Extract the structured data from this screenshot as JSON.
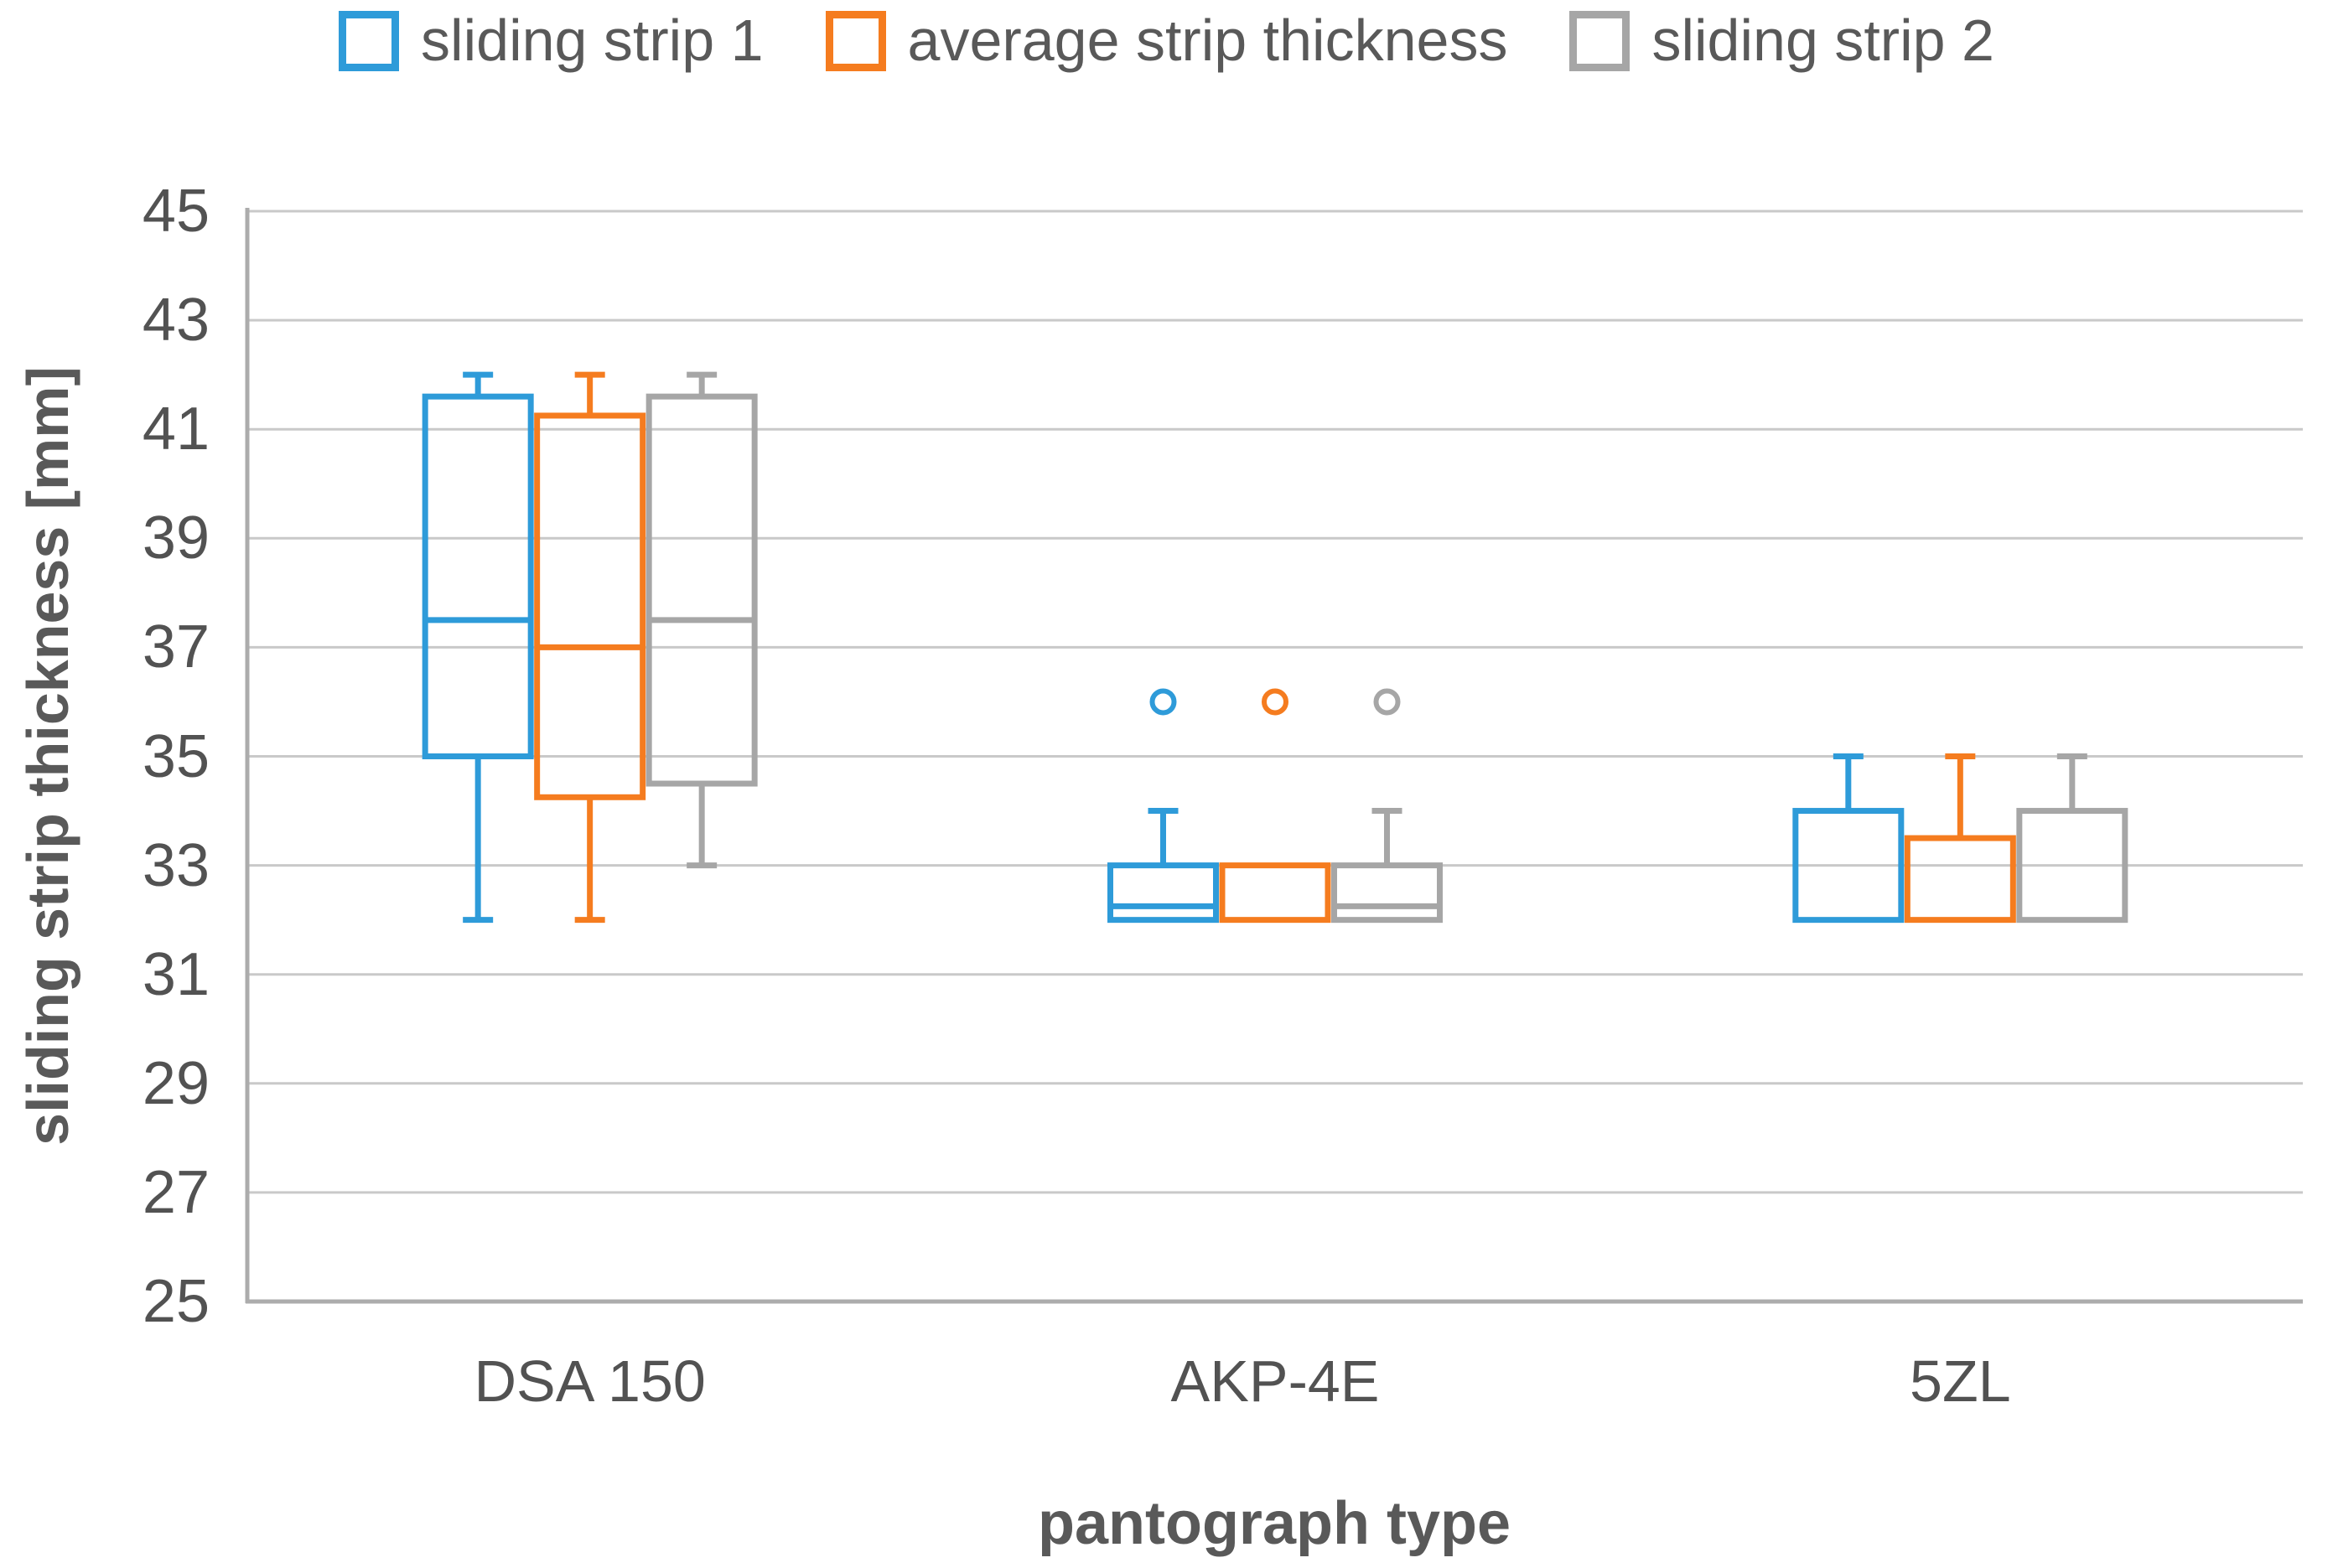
{
  "colors": {
    "grid": "#C9C9C9",
    "axis": "#ACACAC",
    "text": "#595959",
    "series_blue": "#2E9BD9",
    "series_orange": "#F57C1F",
    "series_gray": "#A6A6A6"
  },
  "chart_data": {
    "type": "boxplot",
    "title": "",
    "xlabel": "pantograph type",
    "ylabel": "sliding strip thickness [mm]",
    "ylim": [
      25,
      45
    ],
    "yticks": [
      45,
      43,
      41,
      39,
      37,
      35,
      33,
      31,
      29,
      27,
      25
    ],
    "grid": true,
    "legend_position": "top",
    "categories": [
      "DSA 150",
      "AKP-4E",
      "5ZL"
    ],
    "series": [
      {
        "name": "sliding strip 1",
        "color": "#2E9BD9",
        "boxes": [
          {
            "category": "DSA 150",
            "whisker_high": 42,
            "q3": 41.6,
            "median": 37.5,
            "q1": 35,
            "whisker_low": 32,
            "outliers": []
          },
          {
            "category": "AKP-4E",
            "whisker_high": 34,
            "q3": 33,
            "median": 32.25,
            "q1": 32,
            "whisker_low": 32,
            "outliers": [
              36
            ]
          },
          {
            "category": "5ZL",
            "whisker_high": 35,
            "q3": 34,
            "median": 32,
            "q1": 32,
            "whisker_low": 32,
            "outliers": []
          }
        ]
      },
      {
        "name": "average strip thickness",
        "color": "#F57C1F",
        "boxes": [
          {
            "category": "DSA 150",
            "whisker_high": 42,
            "q3": 41.25,
            "median": 37,
            "q1": 34.25,
            "whisker_low": 32,
            "outliers": []
          },
          {
            "category": "AKP-4E",
            "whisker_high": 33,
            "q3": 33,
            "median": 32,
            "q1": 32,
            "whisker_low": 32,
            "outliers": [
              36
            ]
          },
          {
            "category": "5ZL",
            "whisker_high": 35,
            "q3": 33.5,
            "median": 32,
            "q1": 32,
            "whisker_low": 32,
            "outliers": []
          }
        ]
      },
      {
        "name": "sliding strip 2",
        "color": "#A6A6A6",
        "boxes": [
          {
            "category": "DSA 150",
            "whisker_high": 42,
            "q3": 41.6,
            "median": 37.5,
            "q1": 34.5,
            "whisker_low": 33,
            "outliers": []
          },
          {
            "category": "AKP-4E",
            "whisker_high": 34,
            "q3": 33,
            "median": 32.25,
            "q1": 32,
            "whisker_low": 32,
            "outliers": [
              36
            ]
          },
          {
            "category": "5ZL",
            "whisker_high": 35,
            "q3": 34,
            "median": 32,
            "q1": 32,
            "whisker_low": 32,
            "outliers": []
          }
        ]
      }
    ]
  }
}
